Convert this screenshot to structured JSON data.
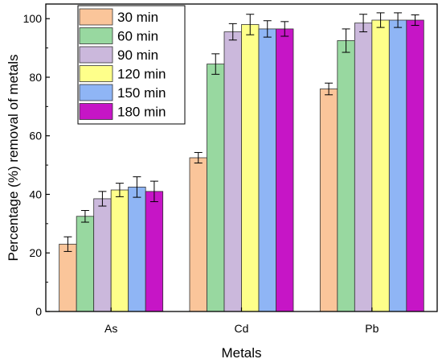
{
  "chart_data": {
    "type": "bar",
    "xlabel": "Metals",
    "ylabel": "Percentage (%) removal of metals",
    "categories": [
      "As",
      "Cd",
      "Pb"
    ],
    "ylim": [
      0,
      100
    ],
    "yticks": [
      0,
      20,
      40,
      60,
      80,
      100
    ],
    "grid": false,
    "legend_position": "top-left",
    "series": [
      {
        "name": "30 min",
        "color": "#fac59a",
        "values": [
          23,
          52.5,
          76
        ],
        "errors": [
          2.5,
          1.8,
          2
        ]
      },
      {
        "name": "60 min",
        "color": "#98d8a0",
        "values": [
          32.5,
          84.5,
          92.5
        ],
        "errors": [
          2,
          3.5,
          4
        ]
      },
      {
        "name": "90 min",
        "color": "#cbb8dc",
        "values": [
          38.5,
          95.5,
          98.5
        ],
        "errors": [
          2.5,
          2.8,
          3
        ]
      },
      {
        "name": "120 min",
        "color": "#feff8a",
        "values": [
          41.5,
          98,
          99.5
        ],
        "errors": [
          2.3,
          3.5,
          2.5
        ]
      },
      {
        "name": "150 min",
        "color": "#8fb5f5",
        "values": [
          42.5,
          96.5,
          99.5
        ],
        "errors": [
          3.5,
          2.8,
          2.5
        ]
      },
      {
        "name": "180 min",
        "color": "#c615c6",
        "values": [
          41,
          96.5,
          99.5
        ],
        "errors": [
          3.5,
          2.5,
          1.8
        ]
      }
    ]
  }
}
